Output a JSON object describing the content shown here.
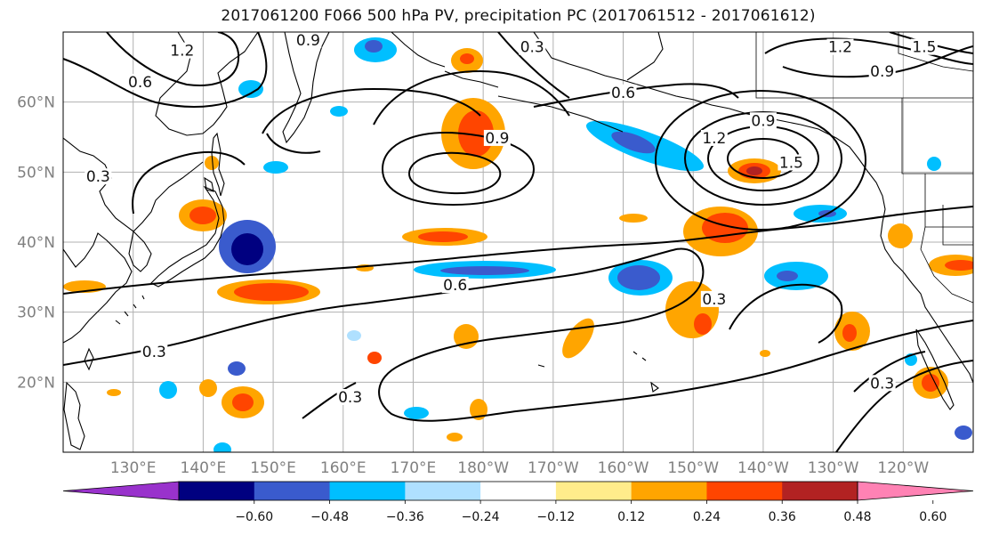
{
  "title": "2017061200 F066 500 hPa PV, precipitation PC (2017061512 - 2017061612)",
  "lat_labels": [
    {
      "lat": 60,
      "text": "60°N"
    },
    {
      "lat": 50,
      "text": "50°N"
    },
    {
      "lat": 40,
      "text": "40°N"
    },
    {
      "lat": 30,
      "text": "30°N"
    },
    {
      "lat": 20,
      "text": "20°N"
    }
  ],
  "lon_labels": [
    {
      "lon": 130,
      "text": "130°E"
    },
    {
      "lon": 140,
      "text": "140°E"
    },
    {
      "lon": 150,
      "text": "150°E"
    },
    {
      "lon": 160,
      "text": "160°E"
    },
    {
      "lon": 170,
      "text": "170°E"
    },
    {
      "lon": 180,
      "text": "180°W"
    },
    {
      "lon": 190,
      "text": "170°W"
    },
    {
      "lon": 200,
      "text": "160°W"
    },
    {
      "lon": 210,
      "text": "150°W"
    },
    {
      "lon": 220,
      "text": "140°W"
    },
    {
      "lon": 230,
      "text": "130°W"
    },
    {
      "lon": 240,
      "text": "120°W"
    }
  ],
  "contour_labels": [
    {
      "text": "1.2",
      "lon": 137,
      "lat": 67.0
    },
    {
      "text": "0.9",
      "lon": 155,
      "lat": 68.5
    },
    {
      "text": "0.3",
      "lon": 187,
      "lat": 67.5
    },
    {
      "text": "0.6",
      "lon": 131,
      "lat": 62.5
    },
    {
      "text": "0.9",
      "lon": 182,
      "lat": 54.5
    },
    {
      "text": "0.6",
      "lon": 176,
      "lat": 33.5
    },
    {
      "text": "0.3",
      "lon": 133,
      "lat": 24.0
    },
    {
      "text": "0.3",
      "lon": 161,
      "lat": 17.5
    },
    {
      "text": "0.3",
      "lon": 213,
      "lat": 31.5
    },
    {
      "text": "0.9",
      "lon": 220,
      "lat": 57.0
    },
    {
      "text": "1.2",
      "lon": 213,
      "lat": 54.5
    },
    {
      "text": "1.5",
      "lon": 224,
      "lat": 51.0
    },
    {
      "text": "0.6",
      "lon": 200,
      "lat": 61.0
    },
    {
      "text": "1.2",
      "lon": 231,
      "lat": 67.5
    },
    {
      "text": "1.5",
      "lon": 243,
      "lat": 67.5
    },
    {
      "text": "0.9",
      "lon": 237,
      "lat": 64.0
    },
    {
      "text": "0.3",
      "lon": 237,
      "lat": 19.5
    },
    {
      "text": "0.3",
      "lon": 125,
      "lat": 49.0
    }
  ],
  "colorbar": {
    "colors": [
      "#9932cc",
      "#000080",
      "#3a5bcd",
      "#00bfff",
      "#afe0ff",
      "#ffffff",
      "#ffec8b",
      "#ffa500",
      "#ff4500",
      "#b22222",
      "#ff82b4"
    ],
    "labels": [
      "−0.60",
      "−0.48",
      "−0.36",
      "−0.24",
      "−0.12",
      "0.12",
      "0.24",
      "0.36",
      "0.48",
      "0.60"
    ]
  },
  "colors": {
    "grid": "#b0b0b0",
    "tick_label": "#808080",
    "contour": "#000000",
    "coast": "#000000"
  }
}
